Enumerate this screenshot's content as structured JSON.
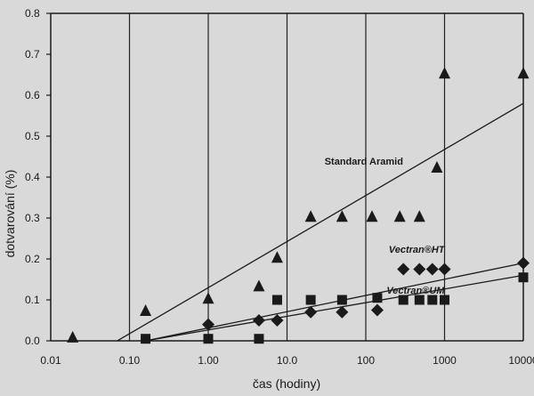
{
  "chart_data": {
    "type": "scatter",
    "title": "",
    "xlabel": "čas (hodiny)",
    "ylabel": "dotvarování (%)",
    "x_scale": "log",
    "xlim": [
      0.01,
      10000
    ],
    "ylim": [
      0.0,
      0.8
    ],
    "x_ticks": [
      {
        "value": 0.01,
        "label": "0.01"
      },
      {
        "value": 0.1,
        "label": "0.10"
      },
      {
        "value": 1,
        "label": "1.00"
      },
      {
        "value": 10,
        "label": "10.0"
      },
      {
        "value": 100,
        "label": "100"
      },
      {
        "value": 1000,
        "label": "1000"
      },
      {
        "value": 10000,
        "label": "10000"
      }
    ],
    "y_ticks": [
      {
        "value": 0.0,
        "label": "0.0"
      },
      {
        "value": 0.1,
        "label": "0.1"
      },
      {
        "value": 0.2,
        "label": "0.2"
      },
      {
        "value": 0.3,
        "label": "0.3"
      },
      {
        "value": 0.4,
        "label": "0.4"
      },
      {
        "value": 0.5,
        "label": "0.5"
      },
      {
        "value": 0.6,
        "label": "0.6"
      },
      {
        "value": 0.7,
        "label": "0.7"
      },
      {
        "value": 0.8,
        "label": "0.8"
      }
    ],
    "grid": "vertical",
    "colors": {
      "background": "#d9d9d9",
      "ink": "#1a1a1a",
      "grid": "#222222"
    },
    "series": [
      {
        "name": "Standard Aramid",
        "marker": "triangle",
        "points": [
          {
            "x": 0.019,
            "y": 0.01
          },
          {
            "x": 0.16,
            "y": 0.075
          },
          {
            "x": 1.0,
            "y": 0.105
          },
          {
            "x": 4.4,
            "y": 0.135
          },
          {
            "x": 7.5,
            "y": 0.205
          },
          {
            "x": 20,
            "y": 0.305
          },
          {
            "x": 50,
            "y": 0.305
          },
          {
            "x": 120,
            "y": 0.305
          },
          {
            "x": 270,
            "y": 0.305
          },
          {
            "x": 480,
            "y": 0.305
          },
          {
            "x": 800,
            "y": 0.425
          },
          {
            "x": 1000,
            "y": 0.655
          },
          {
            "x": 10000,
            "y": 0.655
          }
        ],
        "trend": [
          {
            "x": 0.07,
            "y": 0.0
          },
          {
            "x": 10000,
            "y": 0.58
          }
        ],
        "label_anchor": {
          "x": 30,
          "y": 0.43
        }
      },
      {
        "name": "Vectran®HT",
        "marker": "diamond",
        "points": [
          {
            "x": 1.0,
            "y": 0.04
          },
          {
            "x": 4.4,
            "y": 0.05
          },
          {
            "x": 7.5,
            "y": 0.05
          },
          {
            "x": 20,
            "y": 0.07
          },
          {
            "x": 50,
            "y": 0.07
          },
          {
            "x": 140,
            "y": 0.075
          },
          {
            "x": 300,
            "y": 0.175
          },
          {
            "x": 480,
            "y": 0.175
          },
          {
            "x": 700,
            "y": 0.175
          },
          {
            "x": 1000,
            "y": 0.175
          },
          {
            "x": 10000,
            "y": 0.19
          }
        ],
        "trend": [
          {
            "x": 0.16,
            "y": 0.0
          },
          {
            "x": 10000,
            "y": 0.19
          }
        ],
        "label_anchor": {
          "x": 1000,
          "y": 0.215
        }
      },
      {
        "name": "Vectran®UM",
        "marker": "square",
        "points": [
          {
            "x": 0.16,
            "y": 0.005
          },
          {
            "x": 1.0,
            "y": 0.005
          },
          {
            "x": 4.4,
            "y": 0.005
          },
          {
            "x": 7.5,
            "y": 0.1
          },
          {
            "x": 20,
            "y": 0.1
          },
          {
            "x": 50,
            "y": 0.1
          },
          {
            "x": 140,
            "y": 0.105
          },
          {
            "x": 300,
            "y": 0.1
          },
          {
            "x": 480,
            "y": 0.1
          },
          {
            "x": 700,
            "y": 0.1
          },
          {
            "x": 1000,
            "y": 0.1
          },
          {
            "x": 10000,
            "y": 0.155
          }
        ],
        "trend": [
          {
            "x": 0.16,
            "y": 0.0
          },
          {
            "x": 10000,
            "y": 0.16
          }
        ],
        "label_anchor": {
          "x": 1000,
          "y": 0.115
        }
      }
    ]
  }
}
